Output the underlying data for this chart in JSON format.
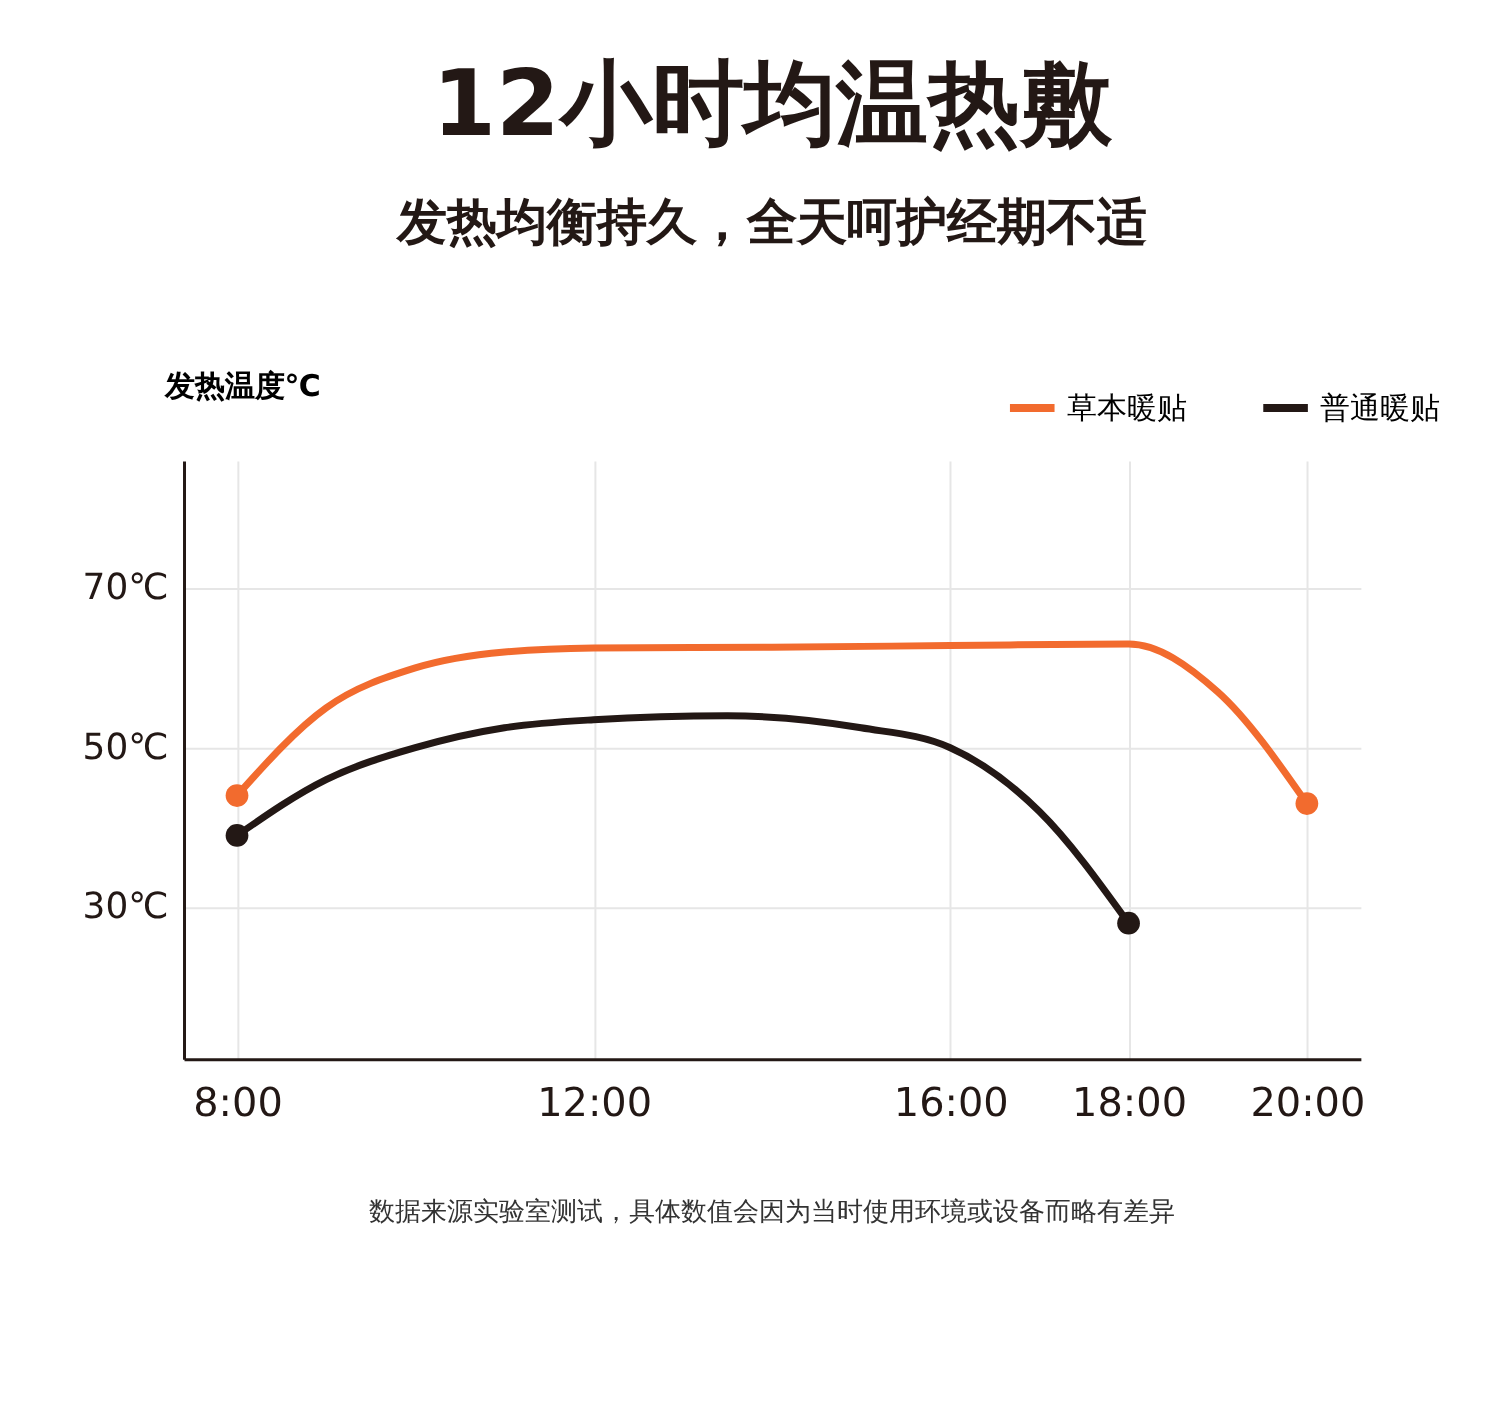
{
  "chart_data": {
    "type": "line",
    "title": "12小时均温热敷",
    "subtitle": "发热均衡持久，全天呵护经期不适",
    "ylabel": "发热温度℃",
    "x": [
      8,
      9,
      10,
      11,
      12,
      14,
      16,
      18,
      19,
      20
    ],
    "series": [
      {
        "name": "草本暖贴",
        "color": "#f26b2e",
        "values": [
          44,
          55,
          60,
          62,
          62.5,
          62.6,
          62.8,
          63,
          57,
          43
        ]
      },
      {
        "name": "普通暖贴",
        "color": "#231815",
        "x": [
          8,
          9,
          10,
          11,
          12,
          13.5,
          15,
          16,
          17,
          18
        ],
        "values": [
          39,
          46,
          50,
          52.5,
          53.5,
          54,
          52.5,
          50,
          42,
          28
        ]
      }
    ],
    "xlim": [
      7.4,
      20.6
    ],
    "ylim": [
      11,
      86
    ],
    "xticks": [
      {
        "value": 8,
        "label": "8:00"
      },
      {
        "value": 12,
        "label": "12:00"
      },
      {
        "value": 16,
        "label": "16:00"
      },
      {
        "value": 18,
        "label": "18:00"
      },
      {
        "value": 20,
        "label": "20:00"
      }
    ],
    "yticks": [
      {
        "value": 30,
        "label": "30℃"
      },
      {
        "value": 50,
        "label": "50℃"
      },
      {
        "value": 70,
        "label": "70℃"
      }
    ],
    "grid": true,
    "legend": "top right",
    "line_style": "solid",
    "annotations": [
      "数据来源实验室测试，具体数值会因为当时使用环境或设备而略有差异"
    ]
  }
}
